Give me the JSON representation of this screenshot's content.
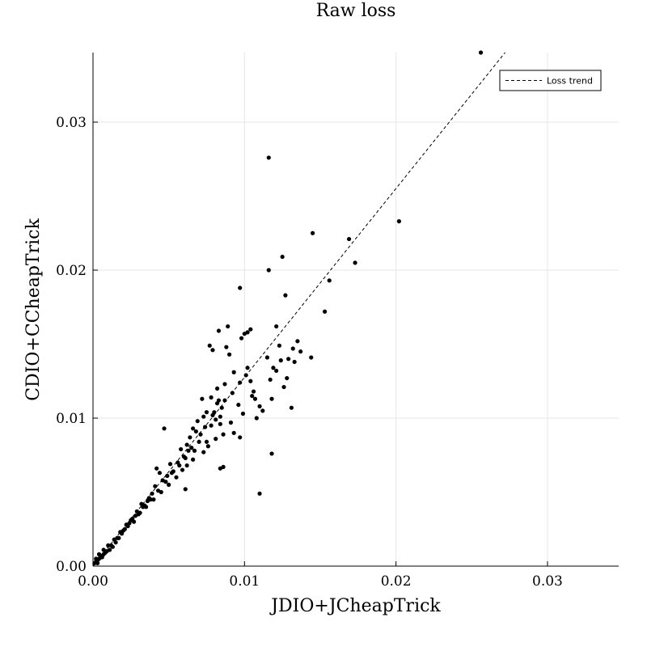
{
  "chart_data": {
    "type": "scatter",
    "title": "Raw loss",
    "xlabel": "JDIO+JCheapTrick",
    "ylabel": "CDIO+CCheapTrick",
    "xlim": [
      0,
      0.0347
    ],
    "ylim": [
      0,
      0.0347
    ],
    "xticks": [
      0.0,
      0.01,
      0.02,
      0.03
    ],
    "yticks": [
      0.0,
      0.01,
      0.02,
      0.03
    ],
    "xtick_labels": [
      "0.00",
      "0.01",
      "0.02",
      "0.03"
    ],
    "ytick_labels": [
      "0.00",
      "0.01",
      "0.02",
      "0.03"
    ],
    "grid": true,
    "legend": {
      "placement": "top-right",
      "entries": [
        {
          "label": "Loss trend",
          "style": "dashed"
        }
      ]
    },
    "series": [
      {
        "name": "Loss trend",
        "kind": "line",
        "x": [
          0.0,
          0.0272
        ],
        "y": [
          0.0,
          0.0347
        ]
      },
      {
        "kind": "scatter",
        "x": [
          0.0256,
          0.0116,
          0.0202,
          0.0145,
          0.0169,
          0.0173,
          0.0125,
          0.0116,
          0.0156,
          0.0097,
          0.0127,
          0.0153,
          0.0121,
          0.0104,
          0.0102,
          0.0089,
          0.0083,
          0.0115,
          0.0123,
          0.0132,
          0.0135,
          0.0144,
          0.0129,
          0.0133,
          0.0077,
          0.0079,
          0.0098,
          0.01,
          0.0088,
          0.009,
          0.0102,
          0.0093,
          0.0117,
          0.0121,
          0.0126,
          0.0131,
          0.0106,
          0.011,
          0.0097,
          0.0099,
          0.0118,
          0.0084,
          0.0085,
          0.0087,
          0.008,
          0.0081,
          0.0082,
          0.0078,
          0.0079,
          0.0083,
          0.0084,
          0.0072,
          0.0073,
          0.0074,
          0.0068,
          0.0069,
          0.007,
          0.0071,
          0.0064,
          0.0065,
          0.0066,
          0.0062,
          0.0063,
          0.006,
          0.0058,
          0.0056,
          0.0053,
          0.0051,
          0.0049,
          0.0047,
          0.0046,
          0.0044,
          0.0042,
          0.0041,
          0.0039,
          0.0037,
          0.0036,
          0.0034,
          0.0032,
          0.003,
          0.0029,
          0.0027,
          0.0025,
          0.0023,
          0.0021,
          0.0019,
          0.0017,
          0.0015,
          0.0013,
          0.0011,
          0.0009,
          0.0008,
          0.0007,
          0.0006,
          0.0005,
          0.0004,
          0.0003,
          0.0002,
          0.0001,
          0.0003,
          0.0006,
          0.0009,
          0.0012,
          0.0016,
          0.002,
          0.0024,
          0.0028,
          0.0033,
          0.0038,
          0.0043,
          0.0048,
          0.0052,
          0.0057,
          0.0061,
          0.0067,
          0.0075,
          0.0084,
          0.0086,
          0.0061,
          0.0118,
          0.0097,
          0.0105,
          0.0108,
          0.0091,
          0.0093,
          0.0086,
          0.0081,
          0.0076,
          0.0073,
          0.0066,
          0.0062,
          0.0059,
          0.0055,
          0.005,
          0.0045,
          0.004,
          0.0035,
          0.0031,
          0.0026,
          0.0022,
          0.0018,
          0.0014,
          0.001,
          0.0007,
          0.0004,
          0.0002,
          0.0075,
          0.0078,
          0.0082,
          0.0087,
          0.0092,
          0.0096,
          0.0101,
          0.0104,
          0.0107,
          0.0112,
          0.0119,
          0.0124,
          0.0128,
          0.0137,
          0.011
        ],
        "y": [
          0.0347,
          0.0276,
          0.0233,
          0.0225,
          0.0221,
          0.0205,
          0.0209,
          0.02,
          0.0193,
          0.0188,
          0.0183,
          0.0172,
          0.0162,
          0.016,
          0.0158,
          0.0162,
          0.0159,
          0.0141,
          0.0149,
          0.0147,
          0.0152,
          0.0141,
          0.014,
          0.0138,
          0.0149,
          0.0146,
          0.0154,
          0.0157,
          0.0148,
          0.0143,
          0.0134,
          0.0131,
          0.0126,
          0.0132,
          0.0121,
          0.0107,
          0.0118,
          0.0108,
          0.0087,
          0.0103,
          0.0076,
          0.0101,
          0.0107,
          0.0112,
          0.0104,
          0.0099,
          0.011,
          0.0095,
          0.0102,
          0.0112,
          0.0096,
          0.0113,
          0.0101,
          0.0094,
          0.0091,
          0.0098,
          0.0084,
          0.0089,
          0.0087,
          0.008,
          0.0093,
          0.0082,
          0.0078,
          0.0074,
          0.0079,
          0.007,
          0.0064,
          0.0069,
          0.0061,
          0.0093,
          0.0058,
          0.0063,
          0.0066,
          0.0054,
          0.0049,
          0.0046,
          0.0044,
          0.0041,
          0.0042,
          0.0035,
          0.0037,
          0.003,
          0.0031,
          0.0027,
          0.0025,
          0.0022,
          0.0019,
          0.0016,
          0.0013,
          0.0011,
          0.001,
          0.0009,
          0.0008,
          0.0007,
          0.0006,
          0.0005,
          0.0004,
          0.0003,
          0.0002,
          0.0002,
          0.0006,
          0.001,
          0.0014,
          0.0019,
          0.0024,
          0.0029,
          0.0034,
          0.004,
          0.0045,
          0.0051,
          0.0057,
          0.0063,
          0.0068,
          0.0073,
          0.0078,
          0.0084,
          0.0066,
          0.0067,
          0.0052,
          0.0113,
          0.0124,
          0.0115,
          0.01,
          0.0097,
          0.009,
          0.0089,
          0.0086,
          0.0081,
          0.0077,
          0.0072,
          0.0068,
          0.0065,
          0.006,
          0.0055,
          0.005,
          0.0045,
          0.004,
          0.0036,
          0.0032,
          0.0028,
          0.0023,
          0.0018,
          0.0014,
          0.0011,
          0.0008,
          0.0005,
          0.0104,
          0.0114,
          0.012,
          0.0123,
          0.0117,
          0.0109,
          0.0129,
          0.0125,
          0.0113,
          0.0105,
          0.0134,
          0.0139,
          0.0127,
          0.0145,
          0.0049
        ]
      }
    ]
  }
}
